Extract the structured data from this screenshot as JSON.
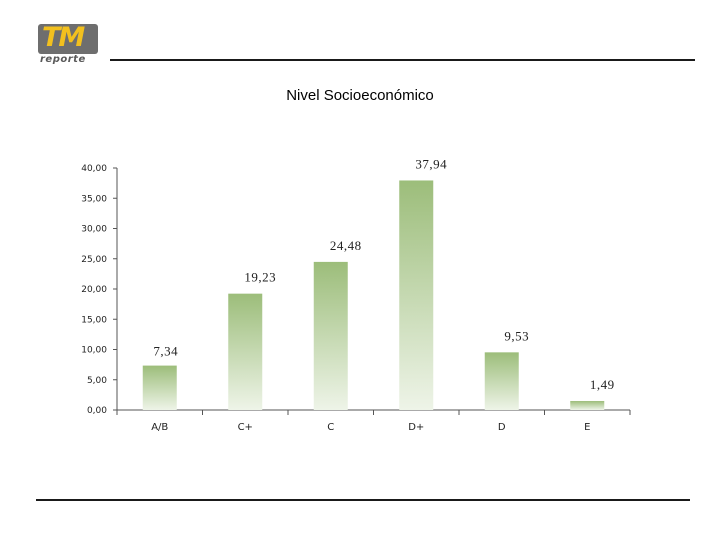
{
  "logo": {
    "mark": "TM",
    "subtitle": "reporte"
  },
  "chart_data": {
    "type": "bar",
    "title": "Nivel Socioeconómico",
    "categories": [
      "A/B",
      "C+",
      "C",
      "D+",
      "D",
      "E"
    ],
    "values": [
      7.34,
      19.23,
      24.48,
      37.94,
      9.53,
      1.49
    ],
    "value_labels": [
      "7,34",
      "19,23",
      "24,48",
      "37,94",
      "9,53",
      "1,49"
    ],
    "ylim": [
      0,
      40
    ],
    "yticks": [
      0,
      5,
      10,
      15,
      20,
      25,
      30,
      35,
      40
    ],
    "ytick_labels": [
      "0,00",
      "5,00",
      "10,00",
      "15,00",
      "20,00",
      "25,00",
      "30,00",
      "35,00",
      "40,00"
    ],
    "xlabel": "",
    "ylabel": "",
    "grid": false,
    "legend": "none",
    "colors": {
      "bar_top": "#9cbd7a",
      "bar_bottom": "#eef4e8",
      "axis": "#555555"
    }
  }
}
